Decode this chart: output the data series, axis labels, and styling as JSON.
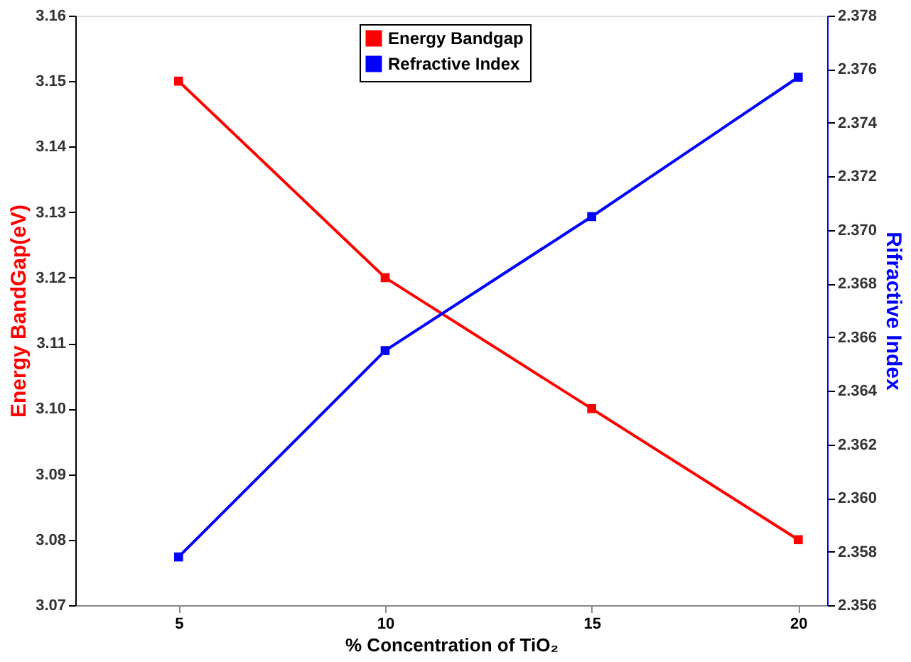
{
  "chart_data": {
    "type": "line",
    "xlabel": "% Concentration of TiO₂",
    "ylabel": "Energy BandGap(eV)",
    "y2label": "Rifractive Index",
    "x": [
      5,
      10,
      15,
      20
    ],
    "series": [
      {
        "name": "Energy Bandgap",
        "color": "#ff0000",
        "values": [
          3.15,
          3.12,
          3.1,
          3.08
        ]
      },
      {
        "name": "Refractive Index",
        "color": "#0000ff",
        "axis": "y2",
        "values": [
          2.3578,
          2.3655,
          2.3705,
          2.3757
        ]
      }
    ],
    "xlim": [
      2.5,
      20.7
    ],
    "xticks": [
      5,
      10,
      15,
      20
    ],
    "ylim": [
      3.07,
      3.16
    ],
    "yticks": [
      3.07,
      3.08,
      3.09,
      {
        "value": 3.1,
        "label": "3.10"
      },
      3.11,
      3.12,
      3.13,
      3.14,
      3.15,
      3.16
    ],
    "y2lim": [
      2.356,
      2.378
    ],
    "y2ticks": [
      2.356,
      2.358,
      {
        "value": 2.36,
        "label": "2.360"
      },
      2.362,
      2.364,
      2.366,
      2.368,
      {
        "value": 2.37,
        "label": "2.370"
      },
      2.372,
      2.374,
      2.376,
      2.378
    ],
    "legend": "top",
    "marker": "square",
    "line_style": "solid",
    "grid": false
  }
}
